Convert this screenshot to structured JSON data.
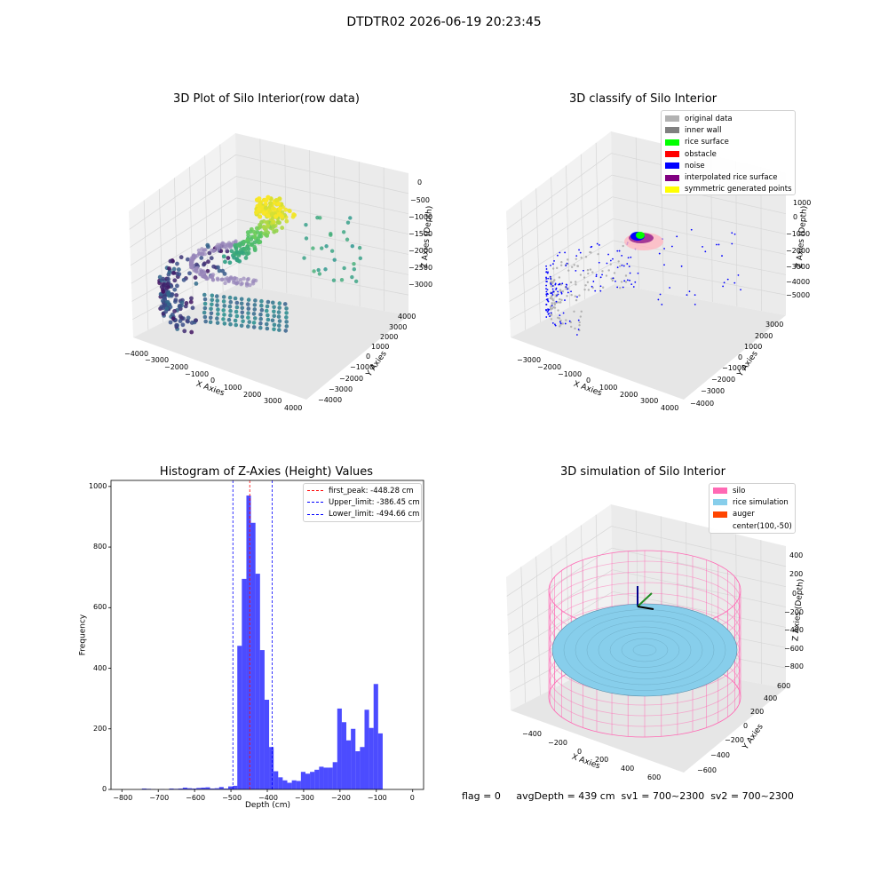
{
  "suptitle": "DTDTR02 2026-06-19 20:23:45",
  "footer": "flag = 0     avgDepth = 439 cm  sv1 = 700~2300  sv2 = 700~2300",
  "chart_data": [
    {
      "type": "scatter",
      "title": "3D Plot of Silo Interior(row data)",
      "xlabel": "X Axies",
      "ylabel": "Y Axies",
      "zlabel": "Z Axies (Depth)",
      "x_ticks": [
        "−4000",
        "−3000",
        "−2000",
        "−1000",
        "0",
        "1000",
        "2000",
        "3000",
        "4000"
      ],
      "y_ticks": [
        "−4000",
        "−3000",
        "−2000",
        "−1000",
        "0",
        "1000",
        "2000",
        "3000",
        "4000"
      ],
      "z_ticks": [
        "0",
        "−500",
        "−1000",
        "−1500",
        "−2000",
        "−2500",
        "−3000"
      ],
      "colormap": "viridis",
      "grid": true
    },
    {
      "type": "scatter",
      "title": "3D classify of Silo Interior",
      "xlabel": "X Axies",
      "ylabel": "Y Axies",
      "zlabel": "Z Axies (Depth)",
      "x_ticks": [
        "−3000",
        "−2000",
        "−1000",
        "0",
        "1000",
        "2000",
        "3000",
        "4000"
      ],
      "y_ticks": [
        "−4000",
        "−3000",
        "−2000",
        "−1000",
        "0",
        "1000",
        "2000",
        "3000"
      ],
      "z_ticks": [
        "1000",
        "0",
        "−1000",
        "−2000",
        "−3000",
        "−4000",
        "−5000"
      ],
      "legend": [
        {
          "name": "original data",
          "color": "#b2b2b2"
        },
        {
          "name": "inner wall",
          "color": "#808080"
        },
        {
          "name": "rice surface",
          "color": "#00ff00"
        },
        {
          "name": "obstacle",
          "color": "#ff0000"
        },
        {
          "name": "noise",
          "color": "#0000ff"
        },
        {
          "name": "interpolated rice surface",
          "color": "#800080"
        },
        {
          "name": "symmetric generated points",
          "color": "#ffff00"
        }
      ],
      "legend_position": "top-right",
      "grid": true
    },
    {
      "type": "bar",
      "title": "Histogram of Z-Axies (Height) Values",
      "xlabel": "Depth (cm)",
      "ylabel": "Frequency",
      "xlim": [
        -830,
        30
      ],
      "ylim": [
        0,
        1020
      ],
      "x_ticks": [
        -800,
        -700,
        -600,
        -500,
        -400,
        -300,
        -200,
        -100,
        0
      ],
      "y_ticks": [
        0,
        200,
        400,
        600,
        800,
        1000
      ],
      "bin_width": 12.5,
      "bins": [
        [
          -745,
          3
        ],
        [
          -732.5,
          2
        ],
        [
          -720,
          1
        ],
        [
          -707.5,
          0
        ],
        [
          -695,
          1
        ],
        [
          -682.5,
          0
        ],
        [
          -670,
          3
        ],
        [
          -657.5,
          2
        ],
        [
          -645,
          3
        ],
        [
          -632.5,
          6
        ],
        [
          -620,
          4
        ],
        [
          -607.5,
          3
        ],
        [
          -595,
          5
        ],
        [
          -582.5,
          6
        ],
        [
          -570,
          7
        ],
        [
          -557.5,
          3
        ],
        [
          -545,
          4
        ],
        [
          -532.5,
          8
        ],
        [
          -520,
          3
        ],
        [
          -507.5,
          10
        ],
        [
          -495,
          12
        ],
        [
          -482.5,
          474
        ],
        [
          -470,
          695
        ],
        [
          -457.5,
          970
        ],
        [
          -445,
          880
        ],
        [
          -432.5,
          712
        ],
        [
          -420,
          460
        ],
        [
          -407.5,
          296
        ],
        [
          -395,
          140
        ],
        [
          -382.5,
          60
        ],
        [
          -370,
          40
        ],
        [
          -357.5,
          30
        ],
        [
          -345,
          22
        ],
        [
          -332.5,
          30
        ],
        [
          -320,
          28
        ],
        [
          -307.5,
          58
        ],
        [
          -295,
          52
        ],
        [
          -282.5,
          58
        ],
        [
          -270,
          65
        ],
        [
          -257.5,
          75
        ],
        [
          -245,
          72
        ],
        [
          -232.5,
          72
        ],
        [
          -220,
          90
        ],
        [
          -207.5,
          267
        ],
        [
          -195,
          222
        ],
        [
          -182.5,
          162
        ],
        [
          -170,
          200
        ],
        [
          -157.5,
          126
        ],
        [
          -145,
          140
        ],
        [
          -132.5,
          263
        ],
        [
          -120,
          203
        ],
        [
          -107.5,
          348
        ],
        [
          -95,
          185
        ]
      ],
      "bar_color": "#0000ff",
      "bar_alpha": 0.7,
      "vlines": [
        {
          "name": "first_peak: -448.28 cm",
          "x": -448.28,
          "color": "#ff0000"
        },
        {
          "name": "Upper_limit: -386.45 cm",
          "x": -386.45,
          "color": "#0000ff"
        },
        {
          "name": "Lower_limit: -494.66 cm",
          "x": -494.66,
          "color": "#0000ff"
        }
      ],
      "legend_position": "top-right"
    },
    {
      "type": "surface",
      "title": "3D simulation of Silo Interior",
      "xlabel": "X Axies",
      "ylabel": "Y Axies",
      "zlabel": "Z Axies (Depth)",
      "x_ticks": [
        "−400",
        "−200",
        "0",
        "200",
        "400",
        "600"
      ],
      "y_ticks": [
        "−600",
        "−400",
        "−200",
        "0",
        "200",
        "400",
        "600"
      ],
      "z_ticks": [
        "400",
        "200",
        "0",
        "−200",
        "−400",
        "−600",
        "−800"
      ],
      "legend": [
        {
          "name": "silo",
          "color": "#ff69b4"
        },
        {
          "name": "rice simulation",
          "color": "#87ceeb"
        },
        {
          "name": "auger",
          "color": "#ff4500"
        },
        {
          "name": "center(100,-50)",
          "color": ""
        }
      ],
      "legend_position": "top-right",
      "grid": true
    }
  ]
}
